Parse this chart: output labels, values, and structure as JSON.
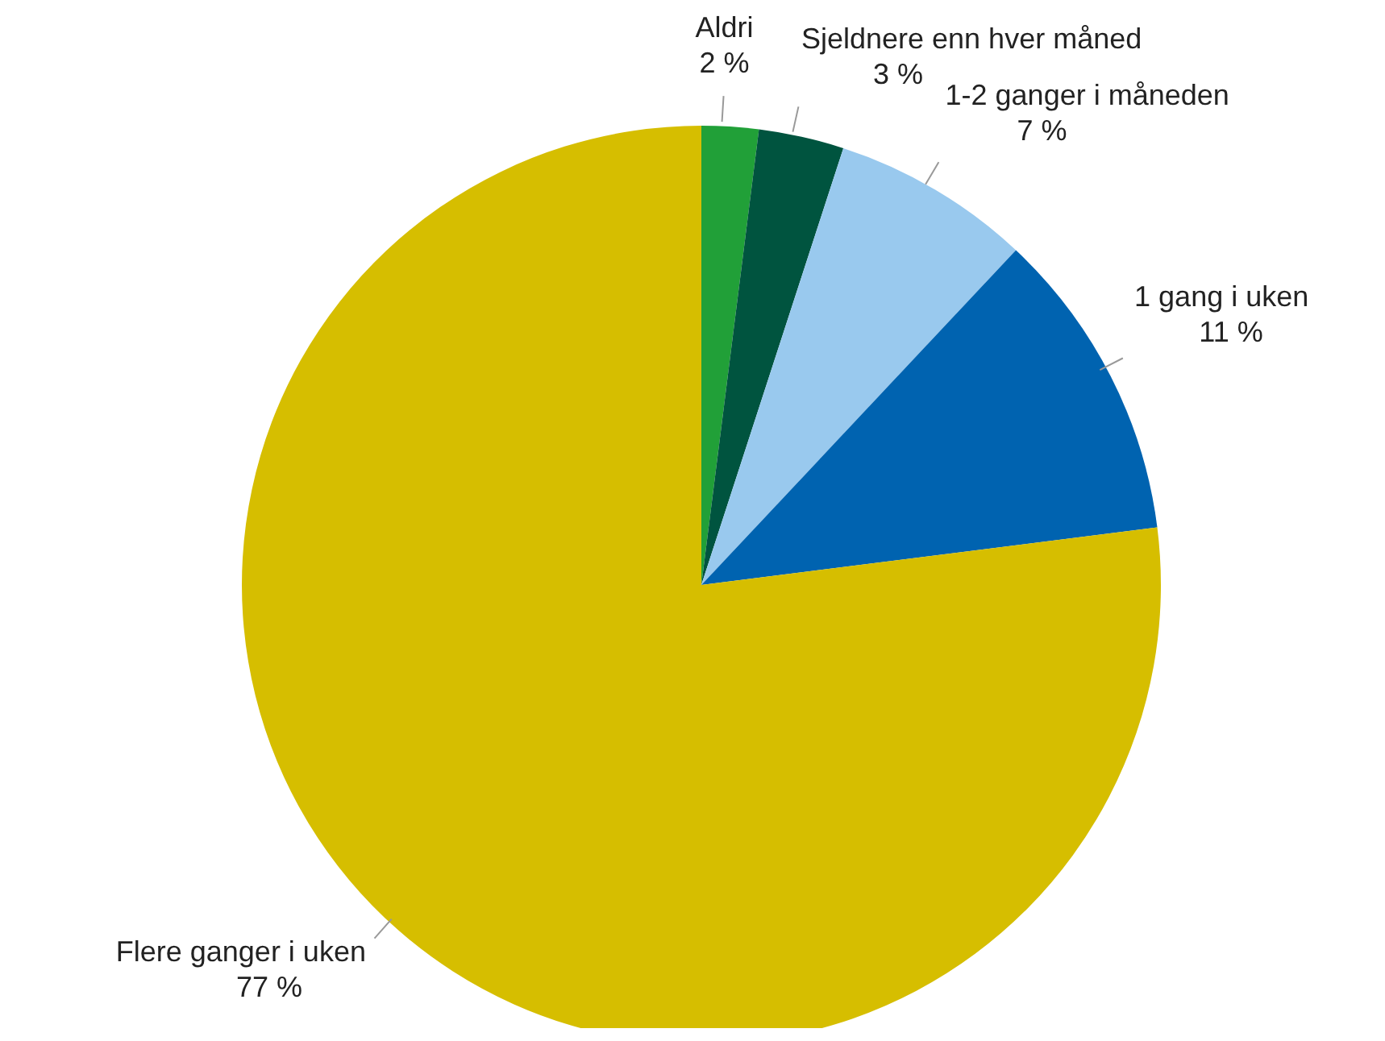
{
  "chart_data": {
    "type": "pie",
    "categories": [
      "Aldri",
      "Sjeldnere enn hver måned",
      "1-2 ganger i måneden",
      "1 gang i uken",
      "Flere ganger i uken"
    ],
    "values": [
      2,
      3,
      7,
      11,
      77
    ],
    "value_labels": [
      "2 %",
      "3 %",
      "7 %",
      "11 %",
      "77 %"
    ],
    "colors": [
      "#21a038",
      "#00543f",
      "#99c9ee",
      "#0063b0",
      "#d6be00"
    ],
    "legend": false
  }
}
